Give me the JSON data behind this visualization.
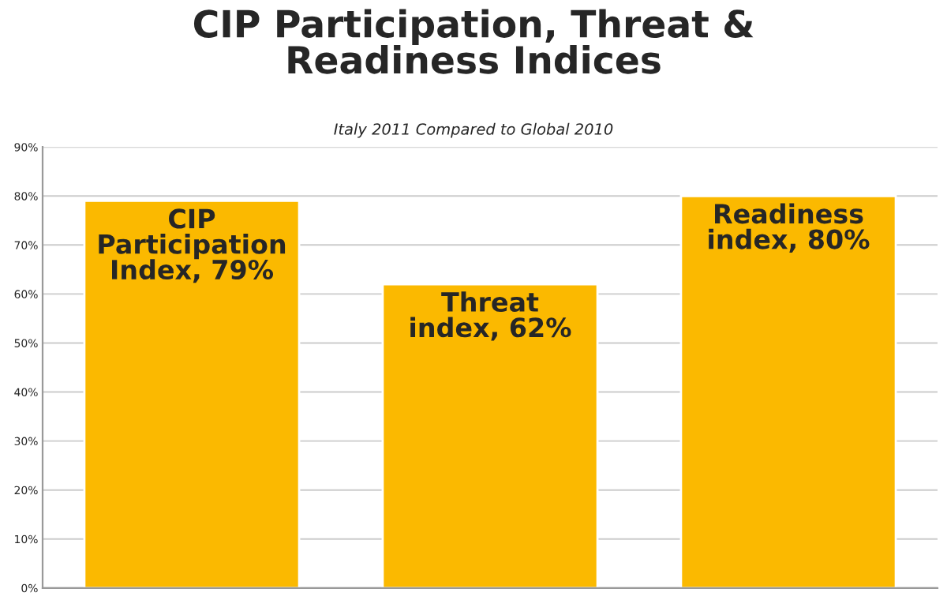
{
  "chart_data": {
    "type": "bar",
    "title": "CIP Participation, Threat &\nReadiness Indices",
    "subtitle": "Italy 2011 Compared to Global 2010",
    "categories": [
      null,
      null,
      null
    ],
    "values": [
      79,
      62,
      80
    ],
    "value_labels": [
      "CIP\nParticipation\nIndex, 79%",
      "Threat\nindex, 62%",
      "Readiness\nindex, 80%"
    ],
    "color": "#fbb900",
    "ylim": [
      0,
      90
    ],
    "yticks": [
      {
        "value": 0,
        "label": "0%"
      },
      {
        "value": 10,
        "label": "10%"
      },
      {
        "value": 20,
        "label": "20%"
      },
      {
        "value": 30,
        "label": "30%"
      },
      {
        "value": 40,
        "label": "40%"
      },
      {
        "value": 50,
        "label": "50%"
      },
      {
        "value": 60,
        "label": "60%"
      },
      {
        "value": 70,
        "label": "70%"
      },
      {
        "value": 80,
        "label": "80%"
      },
      {
        "value": 90,
        "label": "90%"
      }
    ],
    "grid": "y"
  }
}
